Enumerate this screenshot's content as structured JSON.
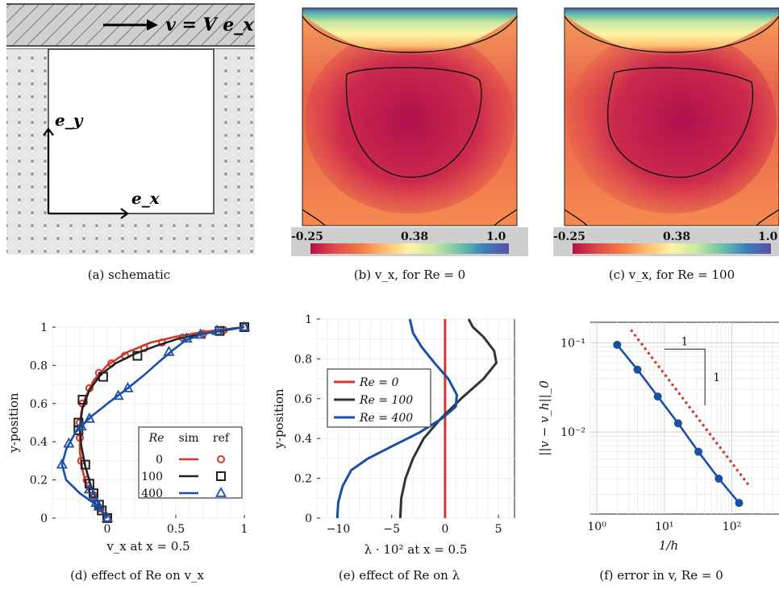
{
  "captions": {
    "a": "(a) schematic",
    "b": "(b) v_x, for Re = 0",
    "c": "(c) v_x, for Re = 100",
    "d": "(d) effect of Re on v_x",
    "e": "(e) effect of Re on λ",
    "f": "(f) error in v, Re = 0"
  },
  "schematic": {
    "lid_label": "v = V e_x",
    "ex_label": "e_x",
    "ey_label": "e_y"
  },
  "colorbar": {
    "min_label": "-0.25",
    "mid_label": "0.38",
    "max_label": "1.0",
    "max_label_c": "1.0",
    "colors": [
      "#b5104a",
      "#e04a4a",
      "#f37a45",
      "#fdbe6e",
      "#fff3a6",
      "#c8e8a0",
      "#6fc3a8",
      "#3c7fba",
      "#5b4fa5"
    ]
  },
  "chart_data": [
    {
      "id": "d",
      "type": "line",
      "xlabel": "v_x at x = 0.5",
      "ylabel": "y-position",
      "xlim": [
        -0.4,
        1.0
      ],
      "ylim": [
        0,
        1
      ],
      "xticks": [
        0,
        0.5,
        1
      ],
      "xtick_labels": [
        "0",
        "0.5",
        "1"
      ],
      "yticks": [
        0,
        0.2,
        0.4,
        0.6,
        0.8,
        1
      ],
      "ytick_labels": [
        "0",
        "0.2",
        "0.4",
        "0.6",
        "0.8",
        "1"
      ],
      "legend": {
        "position": "bottom-right",
        "header": [
          "Re",
          "sim",
          "ref"
        ],
        "rows": [
          "0",
          "100",
          "400"
        ]
      },
      "series": [
        {
          "name": "0",
          "color": "#d0392b",
          "marker": "circle",
          "sim": [
            [
              0,
              0
            ],
            [
              -0.06,
              0.05
            ],
            [
              -0.11,
              0.1
            ],
            [
              -0.15,
              0.17
            ],
            [
              -0.18,
              0.25
            ],
            [
              -0.2,
              0.35
            ],
            [
              -0.2,
              0.45
            ],
            [
              -0.19,
              0.55
            ],
            [
              -0.16,
              0.63
            ],
            [
              -0.1,
              0.72
            ],
            [
              0,
              0.8
            ],
            [
              0.15,
              0.87
            ],
            [
              0.32,
              0.92
            ],
            [
              0.5,
              0.95
            ],
            [
              0.7,
              0.975
            ],
            [
              0.88,
              0.99
            ],
            [
              1,
              1
            ]
          ],
          "ref": [
            [
              0,
              0
            ],
            [
              -0.05,
              0.05
            ],
            [
              -0.1,
              0.12
            ],
            [
              -0.15,
              0.2
            ],
            [
              -0.19,
              0.3
            ],
            [
              -0.2,
              0.42
            ],
            [
              -0.2,
              0.5
            ],
            [
              -0.18,
              0.6
            ],
            [
              -0.13,
              0.68
            ],
            [
              -0.06,
              0.76
            ],
            [
              0.03,
              0.81
            ],
            [
              0.13,
              0.85
            ],
            [
              0.27,
              0.89
            ],
            [
              0.4,
              0.92
            ],
            [
              0.55,
              0.945
            ],
            [
              0.7,
              0.965
            ],
            [
              0.85,
              0.985
            ],
            [
              1,
              1
            ]
          ]
        },
        {
          "name": "100",
          "color": "#222222",
          "marker": "square",
          "sim": [
            [
              0,
              0
            ],
            [
              -0.04,
              0.04
            ],
            [
              -0.08,
              0.1
            ],
            [
              -0.12,
              0.17
            ],
            [
              -0.16,
              0.27
            ],
            [
              -0.19,
              0.38
            ],
            [
              -0.2,
              0.48
            ],
            [
              -0.18,
              0.58
            ],
            [
              -0.13,
              0.67
            ],
            [
              -0.05,
              0.75
            ],
            [
              0.06,
              0.81
            ],
            [
              0.2,
              0.86
            ],
            [
              0.35,
              0.9
            ],
            [
              0.52,
              0.94
            ],
            [
              0.7,
              0.965
            ],
            [
              0.87,
              0.985
            ],
            [
              1,
              1
            ]
          ],
          "ref": [
            [
              0,
              0
            ],
            [
              -0.04,
              0.04
            ],
            [
              -0.06,
              0.07
            ],
            [
              -0.1,
              0.13
            ],
            [
              -0.13,
              0.18
            ],
            [
              -0.16,
              0.28
            ],
            [
              -0.21,
              0.46
            ],
            [
              -0.21,
              0.5
            ],
            [
              -0.18,
              0.62
            ],
            [
              -0.03,
              0.74
            ],
            [
              0.22,
              0.85
            ],
            [
              0.82,
              0.98
            ],
            [
              1,
              1
            ]
          ]
        },
        {
          "name": "400",
          "color": "#1a4fa8",
          "marker": "triangle",
          "sim": [
            [
              0,
              0
            ],
            [
              -0.04,
              0.04
            ],
            [
              -0.1,
              0.08
            ],
            [
              -0.2,
              0.13
            ],
            [
              -0.3,
              0.2
            ],
            [
              -0.33,
              0.28
            ],
            [
              -0.3,
              0.36
            ],
            [
              -0.23,
              0.45
            ],
            [
              -0.12,
              0.53
            ],
            [
              0.02,
              0.61
            ],
            [
              0.15,
              0.68
            ],
            [
              0.27,
              0.75
            ],
            [
              0.38,
              0.82
            ],
            [
              0.48,
              0.88
            ],
            [
              0.57,
              0.93
            ],
            [
              0.68,
              0.96
            ],
            [
              0.82,
              0.985
            ],
            [
              1,
              1
            ]
          ],
          "ref": [
            [
              0,
              0
            ],
            [
              -0.06,
              0.06
            ],
            [
              -0.08,
              0.08
            ],
            [
              -0.1,
              0.11
            ],
            [
              -0.13,
              0.15
            ],
            [
              -0.33,
              0.28
            ],
            [
              -0.28,
              0.39
            ],
            [
              -0.19,
              0.48
            ],
            [
              -0.13,
              0.52
            ],
            [
              0.08,
              0.64
            ],
            [
              0.15,
              0.68
            ],
            [
              0.45,
              0.87
            ],
            [
              0.58,
              0.94
            ],
            [
              0.68,
              0.96
            ],
            [
              0.8,
              0.98
            ],
            [
              1,
              1
            ]
          ]
        }
      ]
    },
    {
      "id": "e",
      "type": "line",
      "xlabel": "λ · 10² at x = 0.5",
      "ylabel": "y-position",
      "xlim": [
        -12,
        6.5
      ],
      "ylim": [
        0,
        1
      ],
      "xticks": [
        -10,
        -5,
        0,
        5
      ],
      "xtick_labels": [
        "−10",
        "−5",
        "0",
        "5"
      ],
      "yticks": [
        0,
        0.2,
        0.4,
        0.6,
        0.8,
        1
      ],
      "ytick_labels": [
        "0",
        "0.2",
        "0.4",
        "0.6",
        "0.8",
        "1"
      ],
      "legend": {
        "position": "top-left",
        "labels": [
          "Re =     0",
          "Re = 100",
          "Re = 400"
        ]
      },
      "series": [
        {
          "name": "Re = 0",
          "color": "#d0392b",
          "values": [
            [
              0,
              0
            ],
            [
              0,
              1
            ]
          ]
        },
        {
          "name": "Re = 100",
          "color": "#333333",
          "values": [
            [
              -4.2,
              0
            ],
            [
              -4.1,
              0.1
            ],
            [
              -3.7,
              0.2
            ],
            [
              -3,
              0.3
            ],
            [
              -2,
              0.4
            ],
            [
              -0.4,
              0.5
            ],
            [
              1.5,
              0.6
            ],
            [
              3.6,
              0.7
            ],
            [
              4.8,
              0.78
            ],
            [
              4.6,
              0.84
            ],
            [
              3.6,
              0.91
            ],
            [
              2.6,
              0.96
            ],
            [
              2.2,
              1
            ]
          ]
        },
        {
          "name": "Re = 400",
          "color": "#1a4fa8",
          "values": [
            [
              -10.1,
              0
            ],
            [
              -10,
              0.08
            ],
            [
              -9.6,
              0.16
            ],
            [
              -8.8,
              0.24
            ],
            [
              -7.2,
              0.3
            ],
            [
              -5,
              0.36
            ],
            [
              -2.4,
              0.43
            ],
            [
              -0.3,
              0.5
            ],
            [
              1,
              0.56
            ],
            [
              1.1,
              0.62
            ],
            [
              0.3,
              0.7
            ],
            [
              -1,
              0.78
            ],
            [
              -2.2,
              0.86
            ],
            [
              -3,
              0.93
            ],
            [
              -3.3,
              1
            ]
          ]
        }
      ]
    },
    {
      "id": "f",
      "type": "line",
      "xscale": "log",
      "yscale": "log",
      "xlabel": "1/h",
      "ylabel": "||v − v_h||_0",
      "xlim": [
        0.8,
        500
      ],
      "ylim": [
        0.0012,
        0.17
      ],
      "xticks": [
        1,
        10,
        100
      ],
      "xtick_labels": [
        "10⁰",
        "10¹",
        "10²"
      ],
      "yticks": [
        0.01,
        0.1
      ],
      "ytick_labels": [
        "10⁻²",
        "10⁻¹"
      ],
      "slope_label_run": "1",
      "slope_label_rise": "1",
      "series": [
        {
          "name": "error",
          "color": "#1a4fa8",
          "x": [
            2,
            4,
            8,
            16,
            32,
            64,
            128
          ],
          "values": [
            0.095,
            0.05,
            0.025,
            0.0125,
            0.006,
            0.003,
            0.0016
          ]
        },
        {
          "name": "reference slope",
          "color": "#d0392b",
          "dashed": true,
          "x": [
            3.2,
            180
          ],
          "values": [
            0.14,
            0.0025
          ]
        }
      ]
    }
  ]
}
